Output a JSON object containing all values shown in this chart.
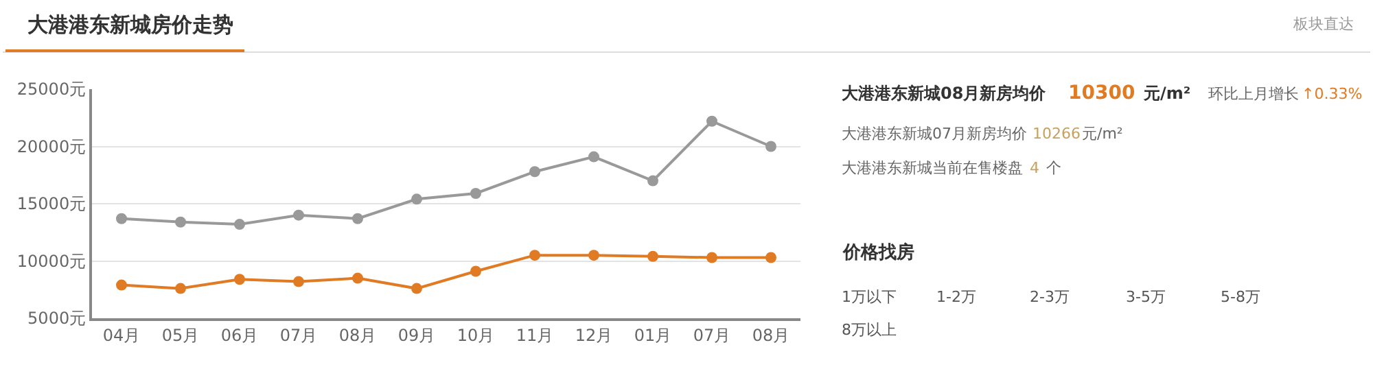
{
  "chart_data": {
    "type": "line",
    "title": "大港港东新城房价走势",
    "categories": [
      "04月",
      "05月",
      "06月",
      "07月",
      "08月",
      "09月",
      "10月",
      "11月",
      "12月",
      "01月",
      "07月",
      "08月"
    ],
    "series": [
      {
        "color": "#999999",
        "values": [
          13700,
          13400,
          13200,
          14000,
          13700,
          15400,
          15900,
          17800,
          19100,
          17000,
          22200,
          20000
        ]
      },
      {
        "color": "#e07b24",
        "values": [
          7900,
          7600,
          8400,
          8200,
          8500,
          7600,
          9100,
          10500,
          10500,
          10400,
          10300,
          10300
        ]
      }
    ],
    "ylim": [
      5000,
      25000
    ],
    "yticks": [
      {
        "value": 5000,
        "label": "5000元"
      },
      {
        "value": 10000,
        "label": "10000元"
      },
      {
        "value": 15000,
        "label": "15000元"
      },
      {
        "value": 20000,
        "label": "20000元"
      },
      {
        "value": 25000,
        "label": "25000元"
      }
    ],
    "grid": "y",
    "marker": "circle",
    "line_style": "solid",
    "annotations": [
      "板块直达",
      "大港港东新城08月新房均价",
      "10300",
      "元/m²",
      "环比上月增长",
      "↑0.33%",
      "大港港东新城07月新房均价",
      "10266",
      "元/m²",
      "大港港东新城当前在售楼盘",
      "4",
      "个",
      "价格找房",
      "1万以下",
      "1-2万",
      "2-3万",
      "3-5万",
      "5-8万",
      "8万以上"
    ]
  }
}
